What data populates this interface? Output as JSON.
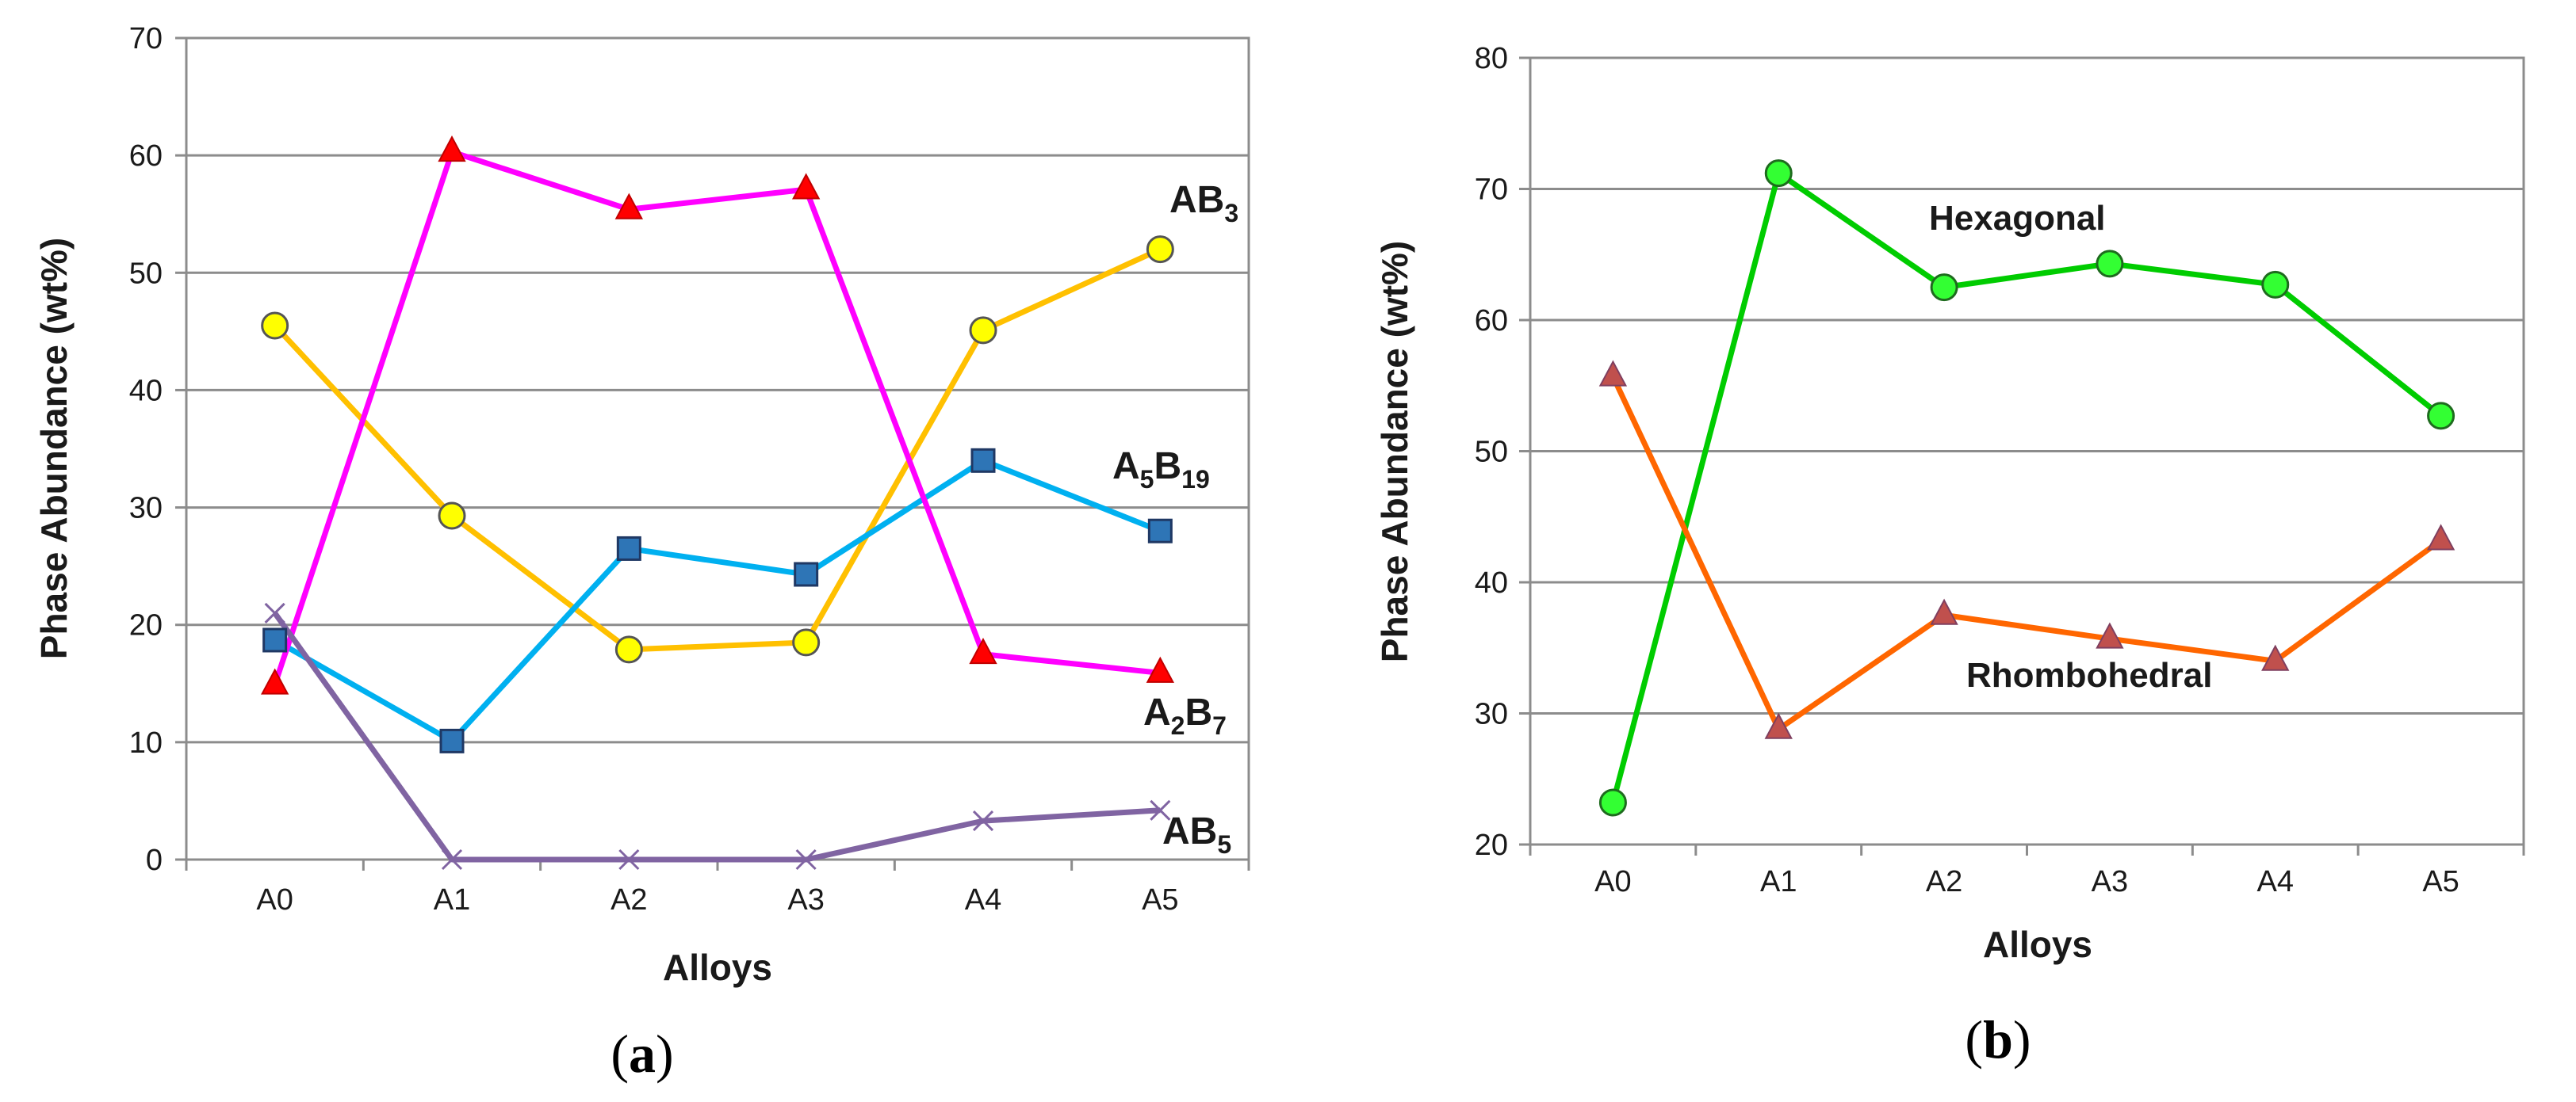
{
  "figure": {
    "left_panel_label": "a",
    "right_panel_label": "b"
  },
  "chart_data": [
    {
      "type": "line",
      "panel": "a",
      "xlabel": "Alloys",
      "ylabel": "Phase Abundance (wt%)",
      "ylim": [
        0,
        70
      ],
      "yticks": [
        0,
        10,
        20,
        30,
        40,
        50,
        60,
        70
      ],
      "categories": [
        "A0",
        "A1",
        "A2",
        "A3",
        "A4",
        "A5"
      ],
      "grid": true,
      "series": [
        {
          "name": "AB3",
          "label_main": "AB",
          "label_sub": "3",
          "color": "#FFC000",
          "marker": "circle",
          "marker_fill": "#FFFF00",
          "marker_stroke": "#555555",
          "values": [
            45.5,
            29.3,
            17.9,
            18.5,
            45.1,
            52.0
          ]
        },
        {
          "name": "A5B19",
          "label_main": "A",
          "label_sub": "5",
          "label_main2": "B",
          "label_sub2": "19",
          "color": "#00B0F0",
          "marker": "square",
          "marker_fill": "#2E75B6",
          "marker_stroke": "#1F3864",
          "values": [
            18.7,
            10.1,
            26.5,
            24.3,
            34.0,
            28.0
          ]
        },
        {
          "name": "A2B7",
          "label_main": "A",
          "label_sub": "2",
          "label_main2": "B",
          "label_sub2": "7",
          "color": "#FF00FF",
          "marker": "triangle",
          "marker_fill": "#FF0000",
          "marker_stroke": "#C00000",
          "values": [
            14.9,
            60.3,
            55.4,
            57.1,
            17.5,
            15.9
          ]
        },
        {
          "name": "AB5",
          "label_main": "AB",
          "label_sub": "5",
          "color": "#8064A2",
          "marker": "x",
          "marker_fill": "none",
          "marker_stroke": "#8064A2",
          "values": [
            21.0,
            0.0,
            0.0,
            0.0,
            3.3,
            4.2
          ]
        }
      ]
    },
    {
      "type": "line",
      "panel": "b",
      "xlabel": "Alloys",
      "ylabel": "Phase Abundance (wt%)",
      "ylim": [
        20,
        80
      ],
      "yticks": [
        20,
        30,
        40,
        50,
        60,
        70,
        80
      ],
      "categories": [
        "A0",
        "A1",
        "A2",
        "A3",
        "A4",
        "A5"
      ],
      "grid": true,
      "series": [
        {
          "name": "Hexagonal",
          "label_main": "Hexagonal",
          "color": "#00CC00",
          "marker": "circle",
          "marker_fill": "#33FF33",
          "marker_stroke": "#1E6B1E",
          "values": [
            23.2,
            71.2,
            62.5,
            64.3,
            62.7,
            52.7
          ]
        },
        {
          "name": "Rhombohedral",
          "label_main": "Rhombohedral",
          "color": "#FF6600",
          "marker": "triangle",
          "marker_fill": "#C0504D",
          "marker_stroke": "#7F3F5F",
          "values": [
            55.7,
            28.8,
            37.5,
            35.7,
            34.0,
            43.2
          ]
        }
      ]
    }
  ]
}
